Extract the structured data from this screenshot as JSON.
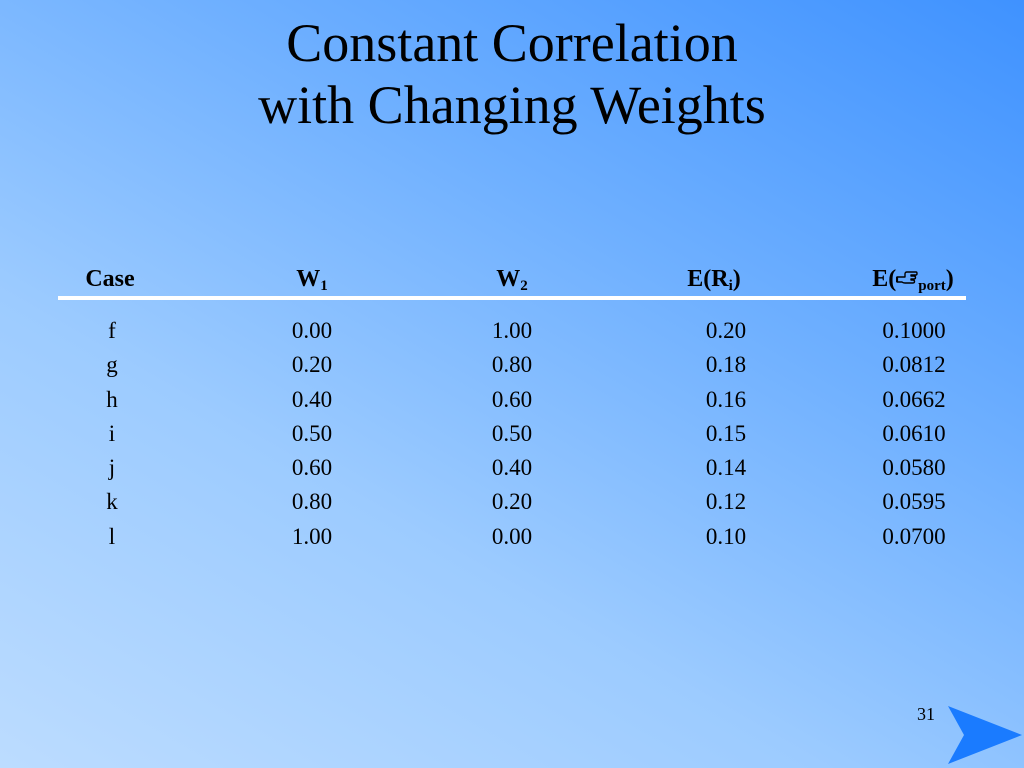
{
  "slide": {
    "title_line1": "Constant Correlation",
    "title_line2": "with Changing Weights",
    "page_number": "31"
  },
  "table": {
    "headers": {
      "case": "Case",
      "w1_base": "W",
      "w1_sub": "1",
      "w2_base": "W",
      "w2_sub": "2",
      "er_prefix": "E(R",
      "er_sub": "i",
      "er_suffix": ")",
      "port_prefix": "E(",
      "port_symbol": "",
      "port_sub": "port",
      "port_suffix": ")"
    },
    "rows": [
      {
        "case": "f",
        "w1": "0.00",
        "w2": "1.00",
        "er": "0.20",
        "port": "0.1000"
      },
      {
        "case": "g",
        "w1": "0.20",
        "w2": "0.80",
        "er": "0.18",
        "port": "0.0812"
      },
      {
        "case": "h",
        "w1": "0.40",
        "w2": "0.60",
        "er": "0.16",
        "port": "0.0662"
      },
      {
        "case": "i",
        "w1": "0.50",
        "w2": "0.50",
        "er": "0.15",
        "port": "0.0610"
      },
      {
        "case": "j",
        "w1": "0.60",
        "w2": "0.40",
        "er": "0.14",
        "port": "0.0580"
      },
      {
        "case": "k",
        "w1": "0.80",
        "w2": "0.20",
        "er": "0.12",
        "port": "0.0595"
      },
      {
        "case": "l",
        "w1": "1.00",
        "w2": "0.00",
        "er": "0.10",
        "port": "0.0700"
      }
    ]
  },
  "icons": {
    "next": "next-arrow-icon",
    "port_symbol": "pointing-hand-icon"
  },
  "colors": {
    "arrow": "#1a7bff",
    "rule": "#ffffff"
  }
}
